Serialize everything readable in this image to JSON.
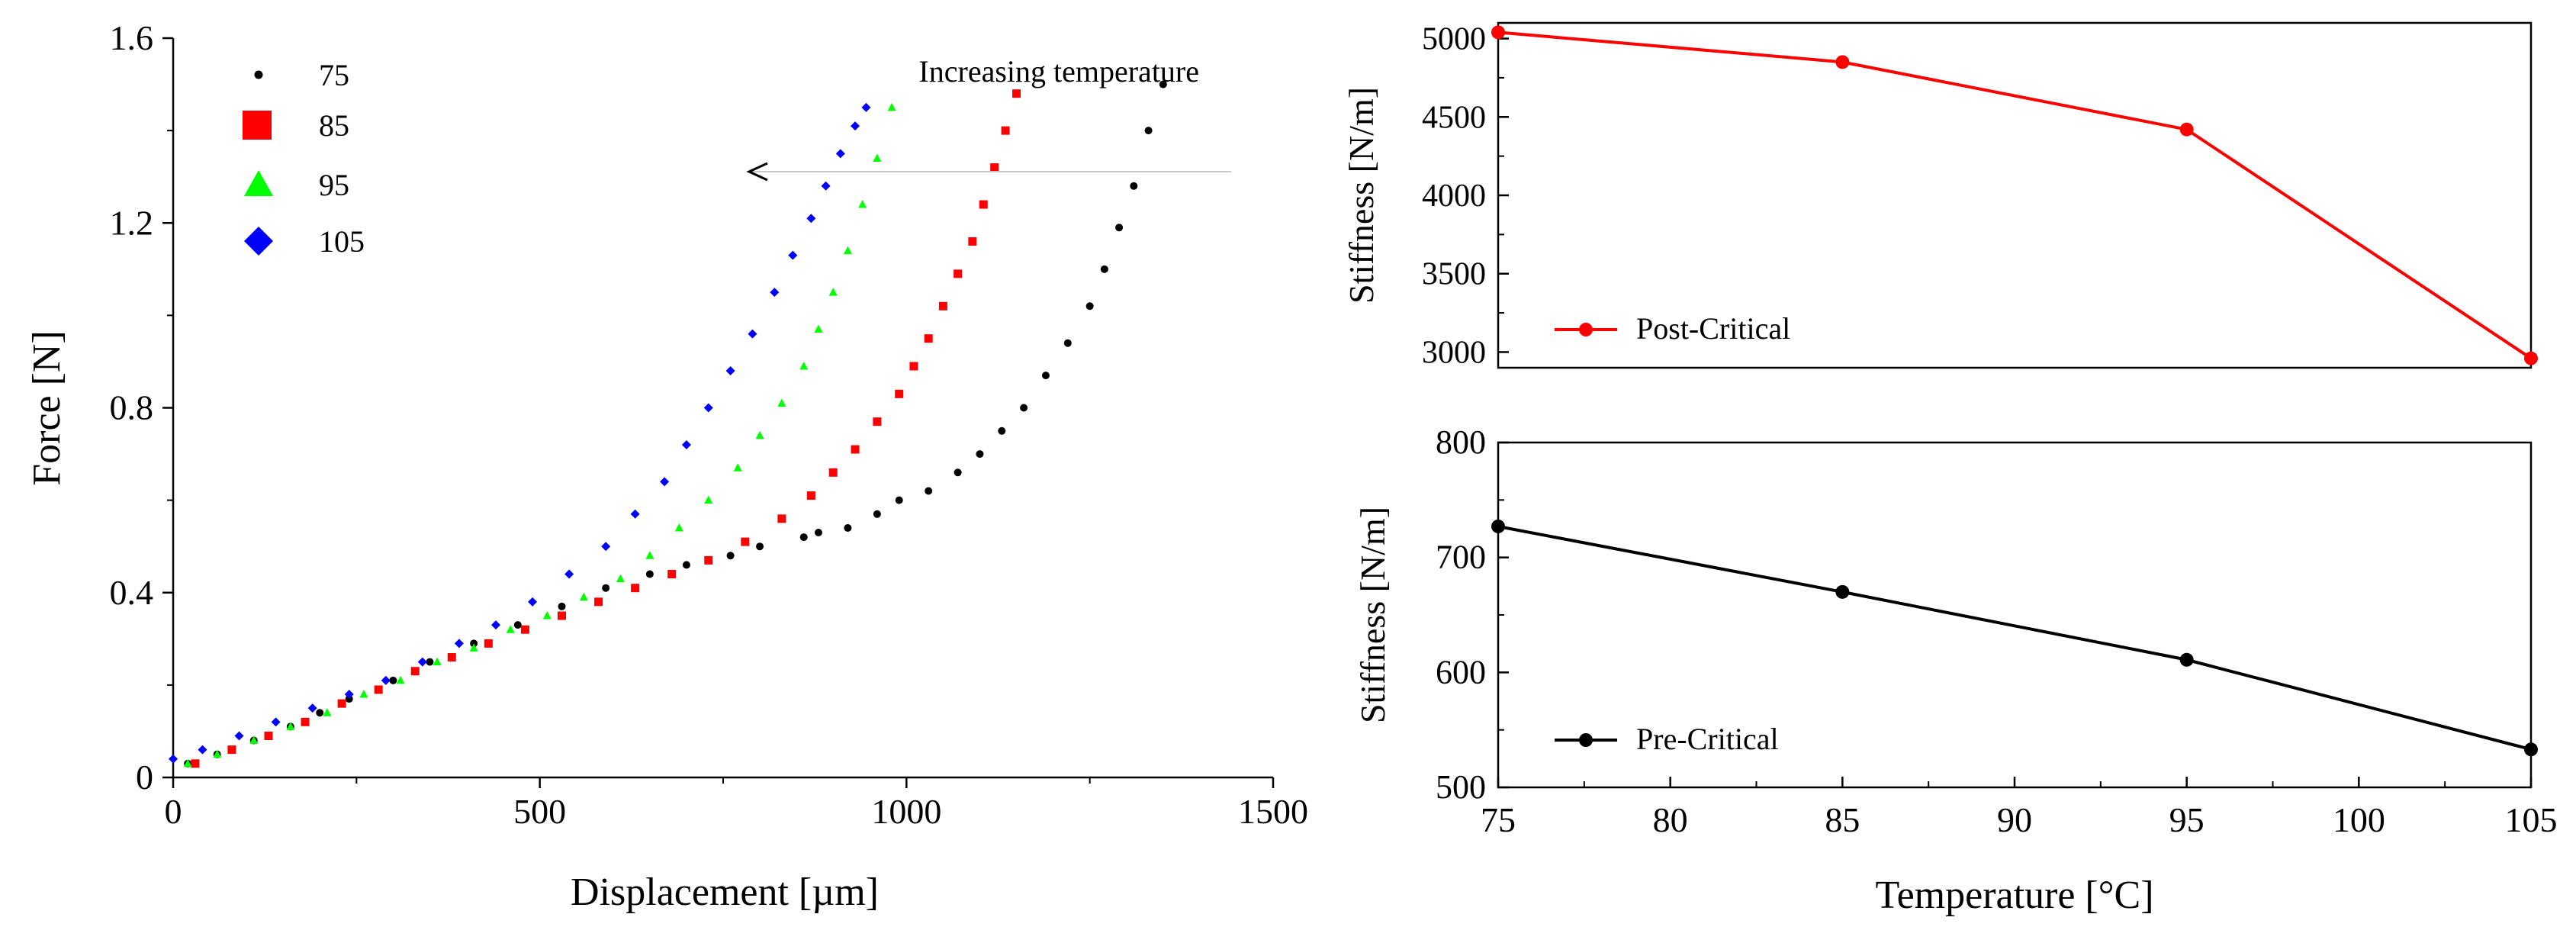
{
  "chart_data": [
    {
      "type": "scatter",
      "title": "",
      "xlabel": "Displacement [µm]",
      "ylabel": "Force [N]",
      "xlim": [
        0,
        1500
      ],
      "ylim": [
        0,
        1.6
      ],
      "xticks": [
        0,
        500,
        1000,
        1500
      ],
      "yticks": [
        0,
        0.4,
        0.8,
        1.2,
        1.6
      ],
      "xtick_labels": [
        "0",
        "500",
        "1000",
        "1500"
      ],
      "ytick_labels": [
        "0",
        "0.4",
        "0.8",
        "1.2",
        "1.6"
      ],
      "legend_position": "top-left",
      "annotation": {
        "text": "Increasing temperature",
        "arrow_from": [
          1440,
          1.31
        ],
        "arrow_to": [
          780,
          1.31
        ]
      },
      "series": [
        {
          "name": "75",
          "marker": "dot",
          "color": "#000000",
          "x": [
            20,
            60,
            110,
            160,
            200,
            240,
            300,
            350,
            410,
            470,
            530,
            590,
            650,
            700,
            760,
            800,
            860,
            880,
            920,
            960,
            990,
            1030,
            1070,
            1100,
            1130,
            1160,
            1190,
            1220,
            1250,
            1270,
            1290,
            1310,
            1330,
            1350
          ],
          "y": [
            0.03,
            0.05,
            0.08,
            0.11,
            0.14,
            0.17,
            0.21,
            0.25,
            0.29,
            0.33,
            0.37,
            0.41,
            0.44,
            0.46,
            0.48,
            0.5,
            0.52,
            0.53,
            0.54,
            0.57,
            0.6,
            0.62,
            0.66,
            0.7,
            0.75,
            0.8,
            0.87,
            0.94,
            1.02,
            1.1,
            1.19,
            1.28,
            1.4,
            1.5
          ]
        },
        {
          "name": "85",
          "marker": "square",
          "color": "#ff0000",
          "x": [
            30,
            80,
            130,
            180,
            230,
            280,
            330,
            380,
            430,
            480,
            530,
            580,
            630,
            680,
            730,
            780,
            830,
            870,
            900,
            930,
            960,
            990,
            1010,
            1030,
            1050,
            1070,
            1090,
            1105,
            1120,
            1135,
            1150
          ],
          "y": [
            0.03,
            0.06,
            0.09,
            0.12,
            0.16,
            0.19,
            0.23,
            0.26,
            0.29,
            0.32,
            0.35,
            0.38,
            0.41,
            0.44,
            0.47,
            0.51,
            0.56,
            0.61,
            0.66,
            0.71,
            0.77,
            0.83,
            0.89,
            0.95,
            1.02,
            1.09,
            1.16,
            1.24,
            1.32,
            1.4,
            1.48
          ]
        },
        {
          "name": "95",
          "marker": "triangle",
          "color": "#00ff00",
          "x": [
            20,
            60,
            110,
            160,
            210,
            260,
            310,
            360,
            410,
            460,
            510,
            560,
            610,
            650,
            690,
            730,
            770,
            800,
            830,
            860,
            880,
            900,
            920,
            940,
            960,
            980
          ],
          "y": [
            0.03,
            0.05,
            0.08,
            0.11,
            0.14,
            0.18,
            0.21,
            0.25,
            0.28,
            0.32,
            0.35,
            0.39,
            0.43,
            0.48,
            0.54,
            0.6,
            0.67,
            0.74,
            0.81,
            0.89,
            0.97,
            1.05,
            1.14,
            1.24,
            1.34,
            1.45
          ]
        },
        {
          "name": "105",
          "marker": "diamond",
          "color": "#0000ff",
          "x": [
            0,
            40,
            90,
            140,
            190,
            240,
            290,
            340,
            390,
            440,
            490,
            540,
            590,
            630,
            670,
            700,
            730,
            760,
            790,
            820,
            845,
            870,
            890,
            910,
            930,
            945
          ],
          "y": [
            0.04,
            0.06,
            0.09,
            0.12,
            0.15,
            0.18,
            0.21,
            0.25,
            0.29,
            0.33,
            0.38,
            0.44,
            0.5,
            0.57,
            0.64,
            0.72,
            0.8,
            0.88,
            0.96,
            1.05,
            1.13,
            1.21,
            1.28,
            1.35,
            1.41,
            1.45
          ]
        }
      ]
    },
    {
      "type": "line",
      "title": "",
      "xlabel": "",
      "ylabel": "Stiffness [N/m]",
      "x": [
        75,
        85,
        95,
        105
      ],
      "xlim": [
        75,
        105
      ],
      "ylim": [
        2900,
        5100
      ],
      "yticks": [
        3000,
        3500,
        4000,
        4500,
        5000
      ],
      "ytick_labels": [
        "3000",
        "3500",
        "4000",
        "4500",
        "5000"
      ],
      "legend_position": "bottom-left",
      "series": [
        {
          "name": "Post-Critical",
          "color": "#ff0000",
          "values": [
            5040,
            4850,
            4420,
            2960
          ]
        }
      ]
    },
    {
      "type": "line",
      "title": "",
      "xlabel": "Temperature [°C]",
      "ylabel": "Stiffness [N/m]",
      "x": [
        75,
        85,
        95,
        105
      ],
      "xlim": [
        75,
        105
      ],
      "ylim": [
        500,
        800
      ],
      "xticks": [
        75,
        80,
        85,
        90,
        95,
        100,
        105
      ],
      "xtick_labels": [
        "75",
        "80",
        "85",
        "90",
        "95",
        "100",
        "105"
      ],
      "yticks": [
        500,
        600,
        700,
        800
      ],
      "ytick_labels": [
        "500",
        "600",
        "700",
        "800"
      ],
      "legend_position": "bottom-left",
      "series": [
        {
          "name": "Pre-Critical",
          "color": "#000000",
          "values": [
            727,
            670,
            611,
            533
          ]
        }
      ]
    }
  ]
}
